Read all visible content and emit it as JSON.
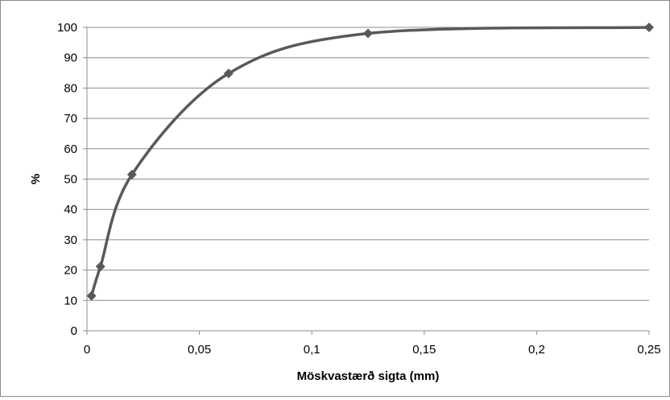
{
  "chart_data": {
    "type": "line",
    "title": "",
    "xlabel": "Möskvastærð sigta (mm)",
    "ylabel": "%",
    "xlim": [
      0,
      0.25
    ],
    "ylim": [
      0,
      100
    ],
    "x_ticks": [
      "0",
      "0,05",
      "0,1",
      "0,15",
      "0,2",
      "0,25"
    ],
    "y_ticks": [
      "0",
      "10",
      "20",
      "30",
      "40",
      "50",
      "60",
      "70",
      "80",
      "90",
      "100"
    ],
    "grid": "horizontal",
    "legend": "none",
    "smooth": true,
    "line_color": "#595959",
    "marker_color": "#595959",
    "marker": "diamond",
    "series": [
      {
        "x": [
          0.002,
          0.006,
          0.02,
          0.063,
          0.125,
          0.25
        ],
        "values": [
          11.5,
          21.2,
          51.5,
          84.8,
          98.0,
          100.0
        ]
      }
    ]
  }
}
